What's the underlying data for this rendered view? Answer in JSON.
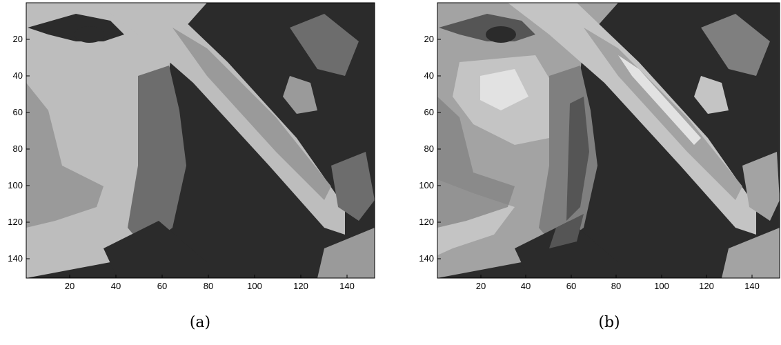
{
  "figure": {
    "panels": [
      {
        "id": "a",
        "caption": "(a)",
        "x_ticks": [
          "20",
          "40",
          "60",
          "80",
          "100",
          "120",
          "140"
        ],
        "y_ticks": [
          "20",
          "40",
          "60",
          "80",
          "100",
          "120",
          "140"
        ],
        "x_range": [
          1,
          152
        ],
        "y_range": [
          1,
          152
        ],
        "palette": [
          "#2b2b2b",
          "#6d6d6d",
          "#9a9a9a",
          "#bdbdbd"
        ],
        "description": "4-level quantized grayscale image"
      },
      {
        "id": "b",
        "caption": "(b)",
        "x_ticks": [
          "20",
          "40",
          "60",
          "80",
          "100",
          "120",
          "140"
        ],
        "y_ticks": [
          "20",
          "40",
          "60",
          "80",
          "100",
          "120",
          "140"
        ],
        "x_range": [
          1,
          152
        ],
        "y_range": [
          1,
          152
        ],
        "palette": [
          "#2b2b2b",
          "#555555",
          "#7f7f7f",
          "#a3a3a3",
          "#c4c4c4",
          "#e2e2e2"
        ],
        "description": "multi-level quantized grayscale image"
      }
    ]
  }
}
